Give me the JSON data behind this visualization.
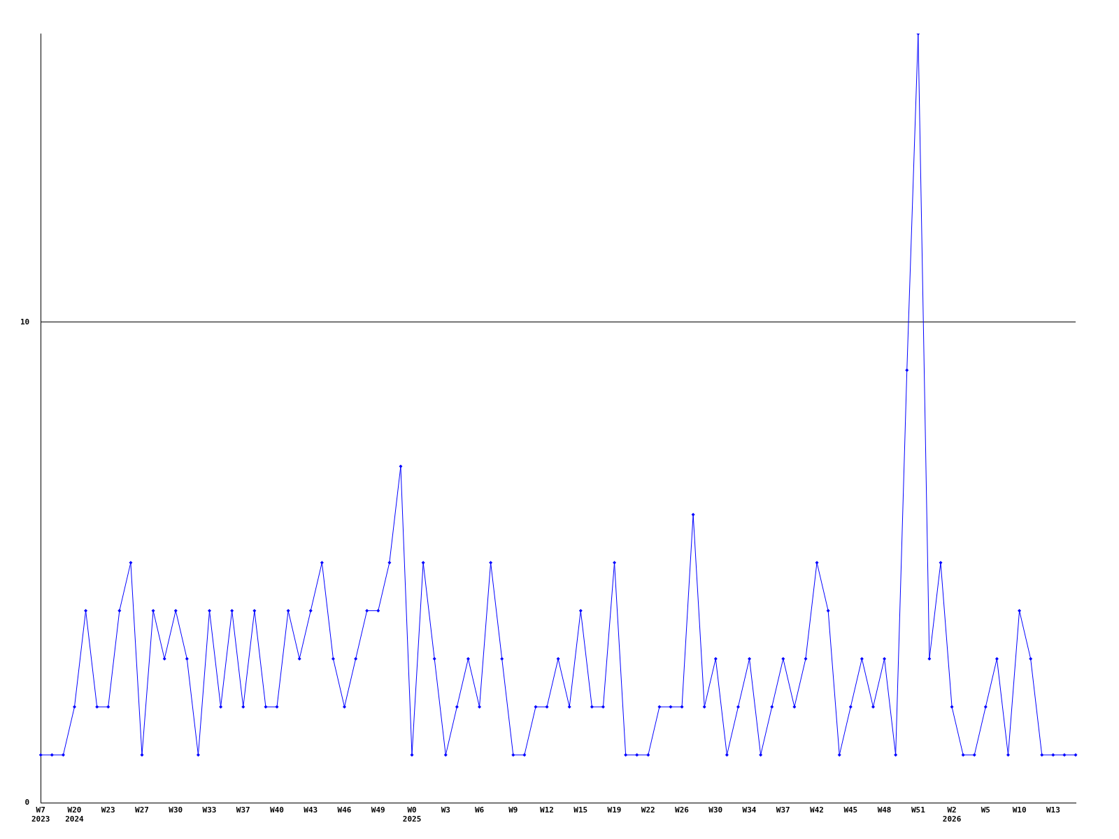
{
  "chart_data": {
    "type": "line",
    "categories": [
      "W7\n2023",
      null,
      null,
      "W20\n2024",
      null,
      null,
      "W23",
      null,
      null,
      "W27",
      null,
      null,
      "W30",
      null,
      null,
      "W33",
      null,
      null,
      "W37",
      null,
      null,
      "W40",
      null,
      null,
      "W43",
      null,
      null,
      "W46",
      null,
      null,
      "W49",
      null,
      null,
      "W0\n2025",
      null,
      null,
      "W3",
      null,
      null,
      "W6",
      null,
      null,
      "W9",
      null,
      null,
      "W12",
      null,
      null,
      "W15",
      null,
      null,
      "W19",
      null,
      null,
      "W22",
      null,
      null,
      "W26",
      null,
      null,
      "W30",
      null,
      null,
      "W34",
      null,
      null,
      "W37",
      null,
      null,
      "W42",
      null,
      null,
      "W45",
      null,
      null,
      "W48",
      null,
      null,
      "W51",
      null,
      null,
      "W2\n2026",
      null,
      null,
      "W5",
      null,
      null,
      "W10",
      null,
      null,
      "W13",
      null,
      null
    ],
    "series": [
      {
        "color": "#0000ff",
        "values": [
          1,
          1,
          1,
          2,
          4,
          2,
          2,
          4,
          5,
          1,
          4,
          3,
          4,
          3,
          1,
          4,
          2,
          4,
          2,
          4,
          2,
          2,
          4,
          3,
          4,
          5,
          3,
          2,
          3,
          4,
          4,
          5,
          7,
          1,
          5,
          3,
          1,
          2,
          3,
          2,
          5,
          3,
          1,
          1,
          2,
          2,
          3,
          2,
          4,
          2,
          2,
          5,
          1,
          1,
          1,
          2,
          2,
          2,
          6,
          2,
          3,
          1,
          2,
          3,
          1,
          2,
          3,
          2,
          3,
          5,
          4,
          1,
          2,
          3,
          2,
          3,
          1,
          9,
          16,
          3,
          5,
          2,
          1,
          1,
          2,
          3,
          1,
          4,
          3,
          1,
          1,
          1,
          1
        ]
      }
    ],
    "ylim": [
      0,
      16
    ],
    "yticks": [
      0,
      10
    ],
    "grid": "y",
    "legend": false,
    "marker": "diamond",
    "line_style": "solid"
  }
}
